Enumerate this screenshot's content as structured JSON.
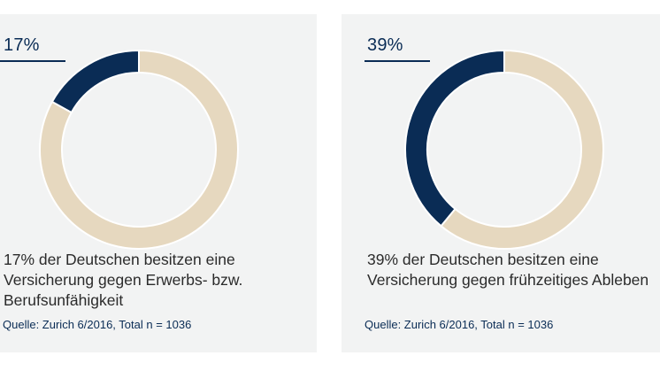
{
  "colors": {
    "highlight": "#0a2c55",
    "remainder": "#e6d8bf",
    "panel": "#f2f3f3"
  },
  "chart_data": [
    {
      "type": "pie",
      "donut": true,
      "label": "17%",
      "slices": [
        {
          "name": "",
          "value": 17,
          "color": "#0a2c55"
        },
        {
          "name": "",
          "value": 83,
          "color": "#e6d8bf"
        }
      ],
      "description": "17% der Deutschen besitzen eine\nVersicherung gegen Erwerbs- bzw.\nBerufsunfähigkeit",
      "source": "Quelle: Zurich 6/2016, Total n = 1036"
    },
    {
      "type": "pie",
      "donut": true,
      "label": "39%",
      "slices": [
        {
          "name": "",
          "value": 39,
          "color": "#0a2c55"
        },
        {
          "name": "",
          "value": 61,
          "color": "#e6d8bf"
        }
      ],
      "description": "39% der Deutschen besitzen eine\nVersicherung gegen frühzeitiges Ableben",
      "source": "Quelle: Zurich 6/2016, Total n = 1036"
    }
  ]
}
